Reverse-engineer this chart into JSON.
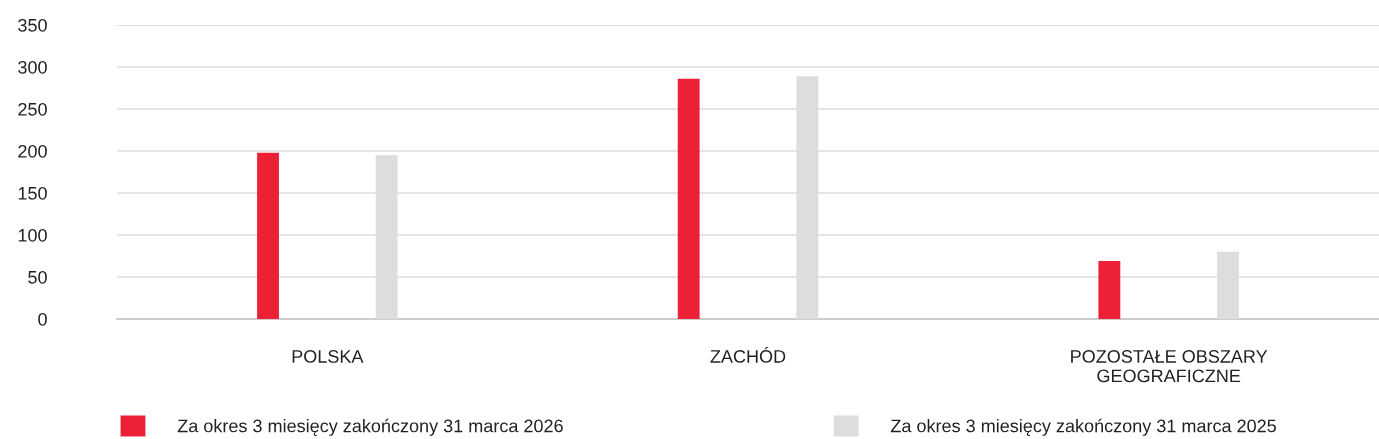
{
  "chart_data": {
    "type": "bar",
    "categories": [
      "POLSKA",
      "ZACHÓD",
      "POZOSTAŁE OBSZARY\nGEOGRAFICZNE"
    ],
    "series": [
      {
        "name": "Za okres 3 miesięcy zakończony 31 marca 2026",
        "color": "#ec2136",
        "values": [
          198,
          286,
          69
        ]
      },
      {
        "name": "Za okres 3 miesięcy zakończony 31 marca 2025",
        "color": "#dcdddf",
        "values": [
          195,
          289,
          80
        ]
      }
    ],
    "ylim": [
      0,
      350
    ],
    "yticks": [
      0,
      50,
      100,
      150,
      200,
      250,
      300,
      350
    ],
    "grid": "y",
    "legend": "bottom"
  }
}
